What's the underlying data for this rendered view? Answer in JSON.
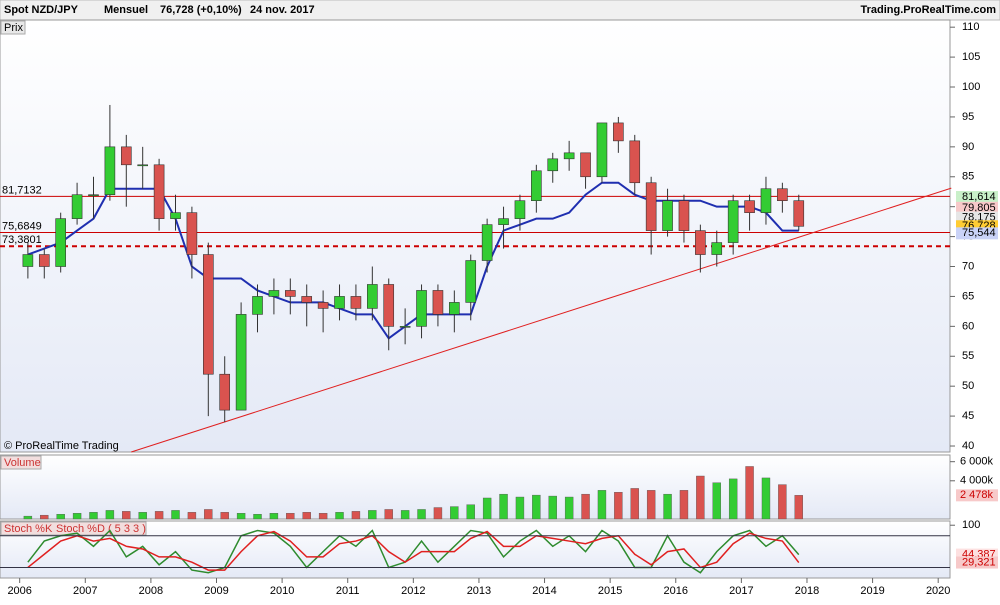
{
  "header": {
    "symbol": "Spot NZD/JPY",
    "period": "Mensuel",
    "quote": "76,728 (+0,10%)",
    "date": "24 nov. 2017",
    "site": "Trading.ProRealTime.com",
    "copyright": "© ProRealTime Trading"
  },
  "chart_data": [
    {
      "type": "candlestick",
      "panel_label": "Prix",
      "x": [
        2006.125,
        2006.375,
        2006.625,
        2006.875,
        2007.125,
        2007.375,
        2007.625,
        2007.875,
        2008.125,
        2008.375,
        2008.625,
        2008.875,
        2009.125,
        2009.375,
        2009.625,
        2009.875,
        2010.125,
        2010.375,
        2010.625,
        2010.875,
        2011.125,
        2011.375,
        2011.625,
        2011.875,
        2012.125,
        2012.375,
        2012.625,
        2012.875,
        2013.125,
        2013.375,
        2013.625,
        2013.875,
        2014.125,
        2014.375,
        2014.625,
        2014.875,
        2015.125,
        2015.375,
        2015.625,
        2015.875,
        2016.125,
        2016.375,
        2016.625,
        2016.875,
        2017.125,
        2017.375,
        2017.625,
        2017.875
      ],
      "open": [
        70,
        72,
        70,
        78,
        82,
        82,
        90,
        87,
        87,
        78,
        79,
        72,
        52,
        46,
        62,
        65,
        66,
        65,
        64,
        63,
        65,
        63,
        67,
        60,
        60,
        66,
        62,
        64,
        71,
        77,
        78,
        81,
        86,
        88,
        89,
        85,
        94,
        91,
        84,
        76,
        81,
        76,
        72,
        74,
        81,
        79,
        83,
        81
      ],
      "high": [
        74,
        73,
        79,
        84,
        85,
        97,
        92,
        90,
        88,
        82,
        80,
        74,
        55,
        64,
        67,
        68,
        68,
        67,
        66,
        67,
        67,
        70,
        68,
        63,
        67,
        67,
        66,
        72,
        78,
        80,
        82,
        87,
        89,
        91,
        89,
        94,
        95,
        92,
        85,
        83,
        82,
        77,
        76,
        82,
        82,
        85,
        84,
        82
      ],
      "low": [
        68,
        68,
        69,
        77,
        78,
        81,
        80,
        83,
        76,
        76,
        68,
        45,
        44,
        46,
        59,
        62,
        62,
        60,
        59,
        61,
        61,
        61,
        56,
        57,
        58,
        60,
        59,
        61,
        69,
        73,
        76,
        79,
        84,
        86,
        83,
        84,
        89,
        82,
        72,
        75,
        74,
        69,
        70,
        72,
        76,
        77,
        79,
        76
      ],
      "close": [
        72,
        70,
        78,
        82,
        82,
        90,
        87,
        87,
        78,
        79,
        72,
        52,
        46,
        62,
        65,
        66,
        65,
        64,
        63,
        65,
        63,
        67,
        60,
        60,
        66,
        62,
        64,
        71,
        77,
        78,
        81,
        86,
        88,
        89,
        85,
        94,
        91,
        84,
        76,
        81,
        76,
        72,
        74,
        81,
        79,
        83,
        81,
        76.728
      ],
      "up_color": "#33cc33",
      "down_color": "#d9534f",
      "kijun": [
        72,
        73,
        74,
        76,
        78,
        83,
        83,
        83,
        83,
        78,
        70,
        68,
        68,
        68,
        66,
        65,
        64,
        64,
        64,
        63,
        62,
        62,
        58,
        60,
        62,
        62,
        62,
        62,
        70,
        76,
        77,
        78,
        78,
        79,
        82,
        84,
        84,
        82,
        81,
        81,
        81,
        81,
        80,
        80,
        80,
        79,
        76,
        76
      ],
      "kijun_color": "#1f2fb0",
      "levels": [
        {
          "value": 81.7132,
          "label": "81,7132",
          "dashed": false
        },
        {
          "value": 75.6849,
          "label": "75,6849",
          "dashed": false
        },
        {
          "value": 73.3801,
          "label": "73,3801",
          "dashed": true
        }
      ],
      "level_color": "#cc0000",
      "trendline": {
        "x": [
          2007.7,
          2020.2
        ],
        "y": [
          39,
          83.1
        ]
      },
      "price_labels": [
        {
          "value": 81.614,
          "label": "81,614",
          "color": "#c9f0c9"
        },
        {
          "value": 79.805,
          "label": "79,805",
          "color": "#f7c9c9"
        },
        {
          "value": 78.175,
          "label": "78,175",
          "color": "#e6e6e6"
        },
        {
          "value": 76.728,
          "label": "76,728",
          "color": "#ffcc33"
        },
        {
          "value": 75.544,
          "label": "75,544",
          "color": "#c9d2f7"
        }
      ],
      "xlim": [
        2005.7,
        2020.18
      ],
      "xticks": [
        2006,
        2007,
        2008,
        2009,
        2010,
        2011,
        2012,
        2013,
        2014,
        2015,
        2016,
        2017,
        2018,
        2019,
        2020
      ],
      "ylim": [
        39,
        111.2
      ],
      "yticks": [
        40,
        45,
        50,
        55,
        60,
        65,
        70,
        75,
        80,
        85,
        90,
        95,
        100,
        105,
        110
      ]
    },
    {
      "type": "bar",
      "panel_label": "Volume",
      "color": "#33cc33",
      "values": [
        300,
        400,
        500,
        600,
        700,
        900,
        800,
        700,
        800,
        900,
        700,
        1000,
        700,
        600,
        500,
        600,
        600,
        700,
        600,
        700,
        800,
        900,
        1000,
        900,
        1000,
        1200,
        1300,
        1500,
        2200,
        2600,
        2300,
        2500,
        2400,
        2300,
        2600,
        3000,
        2800,
        3200,
        3000,
        2600,
        3000,
        4500,
        3800,
        4200,
        5500,
        4300,
        3600,
        2478
      ],
      "ylim": [
        0,
        6700
      ],
      "yticks": [
        {
          "value": 6000,
          "label": "6 000k"
        },
        {
          "value": 4000,
          "label": "4 000k"
        }
      ],
      "last_label": {
        "value": 2478,
        "label": "2 478k"
      }
    },
    {
      "type": "line",
      "panel_label_k": "Stoch %K",
      "panel_label_d": "Stoch %D ( 5 3 3 )",
      "series": [
        {
          "name": "Stoch %K",
          "color": "#2e8b2e",
          "values": [
            30,
            70,
            80,
            85,
            60,
            90,
            40,
            60,
            25,
            50,
            15,
            10,
            20,
            80,
            90,
            85,
            60,
            20,
            50,
            80,
            60,
            90,
            20,
            30,
            70,
            30,
            60,
            90,
            85,
            40,
            70,
            90,
            60,
            80,
            50,
            90,
            70,
            20,
            20,
            80,
            30,
            10,
            50,
            80,
            90,
            60,
            80,
            44.387
          ],
          "value_label": "44,387"
        },
        {
          "name": "Stoch %D",
          "color": "#e02020",
          "values": [
            20,
            45,
            70,
            80,
            70,
            75,
            60,
            55,
            40,
            40,
            30,
            15,
            15,
            50,
            80,
            88,
            70,
            40,
            40,
            65,
            70,
            80,
            50,
            30,
            50,
            50,
            50,
            75,
            88,
            60,
            60,
            80,
            75,
            70,
            65,
            75,
            80,
            45,
            25,
            50,
            55,
            20,
            30,
            65,
            85,
            75,
            70,
            29.321
          ],
          "value_label": "29,321"
        }
      ],
      "levels": [
        80,
        20
      ],
      "ylim": [
        0,
        108
      ],
      "yticks": [
        100
      ]
    }
  ]
}
